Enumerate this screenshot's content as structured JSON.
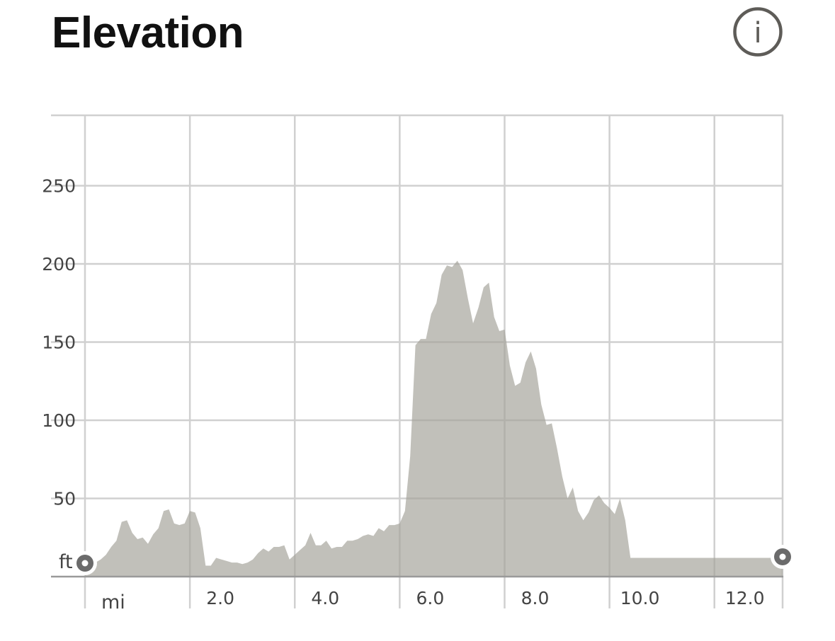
{
  "header": {
    "title": "Elevation",
    "info_label": "i"
  },
  "colors": {
    "area_fill": "#a3a29a",
    "grid": "#d0d0d0",
    "marker_ring": "#ffffff",
    "marker_dot": "#6b6b6b",
    "info_icon": "#5e5c58"
  },
  "chart_data": {
    "type": "area",
    "title": "Elevation",
    "x_unit": "mi",
    "y_unit": "ft",
    "xlim": [
      0,
      13.3
    ],
    "ylim": [
      0,
      295
    ],
    "x_ticks": [
      2.0,
      4.0,
      6.0,
      8.0,
      10.0,
      12.0
    ],
    "x_tick_labels": [
      "2.0",
      "4.0",
      "6.0",
      "8.0",
      "10.0",
      "12.0"
    ],
    "y_ticks": [
      50,
      100,
      150,
      200,
      250
    ],
    "y_tick_labels": [
      "50",
      "100",
      "150",
      "200",
      "250"
    ],
    "grid": true,
    "start_marker": {
      "x": 0.0,
      "y": 8
    },
    "end_marker": {
      "x": 13.3,
      "y": 12
    },
    "x": [
      0.0,
      0.1,
      0.2,
      0.3,
      0.4,
      0.5,
      0.6,
      0.7,
      0.8,
      0.9,
      1.0,
      1.1,
      1.2,
      1.3,
      1.4,
      1.5,
      1.6,
      1.7,
      1.8,
      1.9,
      2.0,
      2.1,
      2.2,
      2.3,
      2.4,
      2.5,
      2.6,
      2.7,
      2.8,
      2.9,
      3.0,
      3.1,
      3.2,
      3.3,
      3.4,
      3.5,
      3.6,
      3.7,
      3.8,
      3.9,
      4.0,
      4.1,
      4.2,
      4.3,
      4.4,
      4.5,
      4.6,
      4.7,
      4.8,
      4.9,
      5.0,
      5.1,
      5.2,
      5.3,
      5.4,
      5.5,
      5.6,
      5.7,
      5.8,
      5.9,
      6.0,
      6.1,
      6.2,
      6.3,
      6.4,
      6.5,
      6.6,
      6.7,
      6.8,
      6.9,
      7.0,
      7.1,
      7.2,
      7.3,
      7.4,
      7.5,
      7.6,
      7.7,
      7.8,
      7.9,
      8.0,
      8.1,
      8.2,
      8.3,
      8.4,
      8.5,
      8.6,
      8.7,
      8.8,
      8.9,
      9.0,
      9.1,
      9.2,
      9.3,
      9.4,
      9.5,
      9.6,
      9.7,
      9.8,
      9.9,
      10.0,
      10.1,
      10.2,
      10.3,
      10.4,
      10.5,
      10.6,
      10.7,
      10.8,
      10.9,
      11.0,
      11.1,
      11.2,
      11.3,
      11.4,
      11.5,
      11.6,
      11.7,
      11.8,
      11.9,
      12.0,
      12.1,
      12.2,
      12.3,
      12.4,
      12.5,
      12.6,
      12.7,
      12.8,
      12.9,
      13.0,
      13.1,
      13.2,
      13.3
    ],
    "y": [
      8,
      8,
      9,
      11,
      14,
      19,
      23,
      35,
      36,
      28,
      24,
      25,
      21,
      27,
      31,
      42,
      43,
      34,
      33,
      34,
      42,
      41,
      31,
      7,
      7,
      12,
      11,
      10,
      9,
      9,
      8,
      9,
      11,
      15,
      18,
      16,
      19,
      19,
      20,
      11,
      14,
      17,
      20,
      28,
      20,
      20,
      23,
      18,
      19,
      19,
      23,
      23,
      24,
      26,
      27,
      26,
      31,
      29,
      33,
      33,
      34,
      42,
      77,
      148,
      152,
      152,
      168,
      175,
      193,
      199,
      198,
      202,
      196,
      178,
      162,
      172,
      185,
      188,
      166,
      157,
      158,
      135,
      122,
      124,
      137,
      144,
      133,
      110,
      97,
      98,
      82,
      64,
      50,
      57,
      42,
      36,
      41,
      49,
      52,
      47,
      44,
      40,
      50,
      36,
      12,
      12,
      12,
      12,
      12,
      12,
      12,
      12,
      12,
      12,
      12,
      12,
      12,
      12,
      12,
      12,
      12,
      12,
      12,
      12,
      12,
      12,
      12,
      12,
      12,
      12,
      12,
      12,
      12,
      12
    ]
  }
}
